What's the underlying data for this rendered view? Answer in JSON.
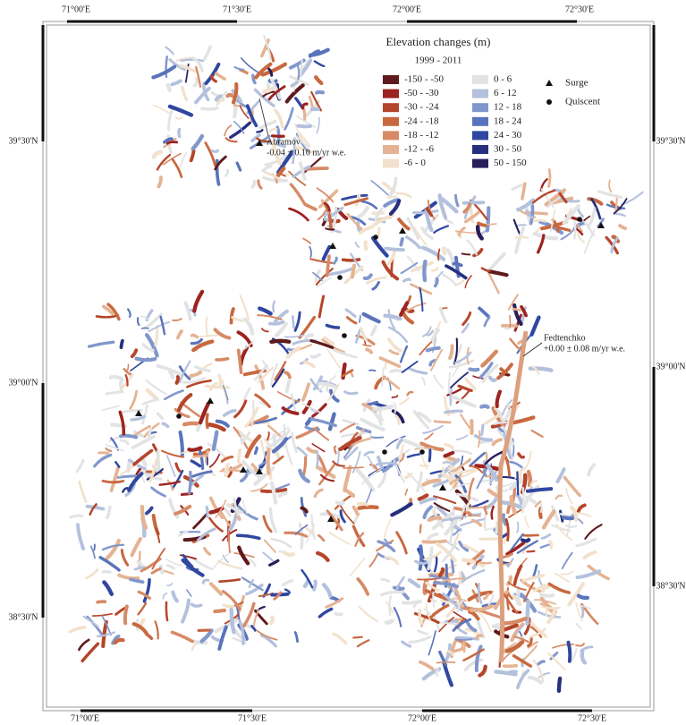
{
  "map": {
    "legend_title": "Elevation changes (m)",
    "period": "1999 - 2011",
    "legend": [
      {
        "label": "-150 - -50",
        "color": "#5e1a1d"
      },
      {
        "label": "-50 - -30",
        "color": "#9c2320"
      },
      {
        "label": "-30 - -24",
        "color": "#b5452a"
      },
      {
        "label": "-24 - -18",
        "color": "#c8683f"
      },
      {
        "label": "-18 - -12",
        "color": "#d68a66"
      },
      {
        "label": "-12 - -6",
        "color": "#e5b393"
      },
      {
        "label": "-6 - 0",
        "color": "#f2e2cd"
      },
      {
        "label": "0 - 6",
        "color": "#e2e3e4"
      },
      {
        "label": "6 - 12",
        "color": "#b4c1dd"
      },
      {
        "label": "12 - 18",
        "color": "#8197cc"
      },
      {
        "label": "18 - 24",
        "color": "#5a74bb"
      },
      {
        "label": "24 - 30",
        "color": "#2f47a0"
      },
      {
        "label": "30 - 50",
        "color": "#26307f"
      },
      {
        "label": "50 - 150",
        "color": "#2a1e5c"
      }
    ],
    "symbols": [
      {
        "label": "Surge",
        "shape": "triangle"
      },
      {
        "label": "Quiscent",
        "shape": "circle"
      }
    ],
    "annotations": [
      {
        "name": "Abramov",
        "text": "-0.04 ± 0.10 m/yr w.e."
      },
      {
        "name": "Fedtenchko",
        "text": "+0.00 ± 0.08 m/yr w.e."
      }
    ],
    "longitudes": [
      "71°00'E",
      "71°30'E",
      "72°00'E",
      "72°30'E"
    ],
    "latitudes": [
      "39°30'N",
      "39°00'N",
      "38°30'N"
    ]
  }
}
